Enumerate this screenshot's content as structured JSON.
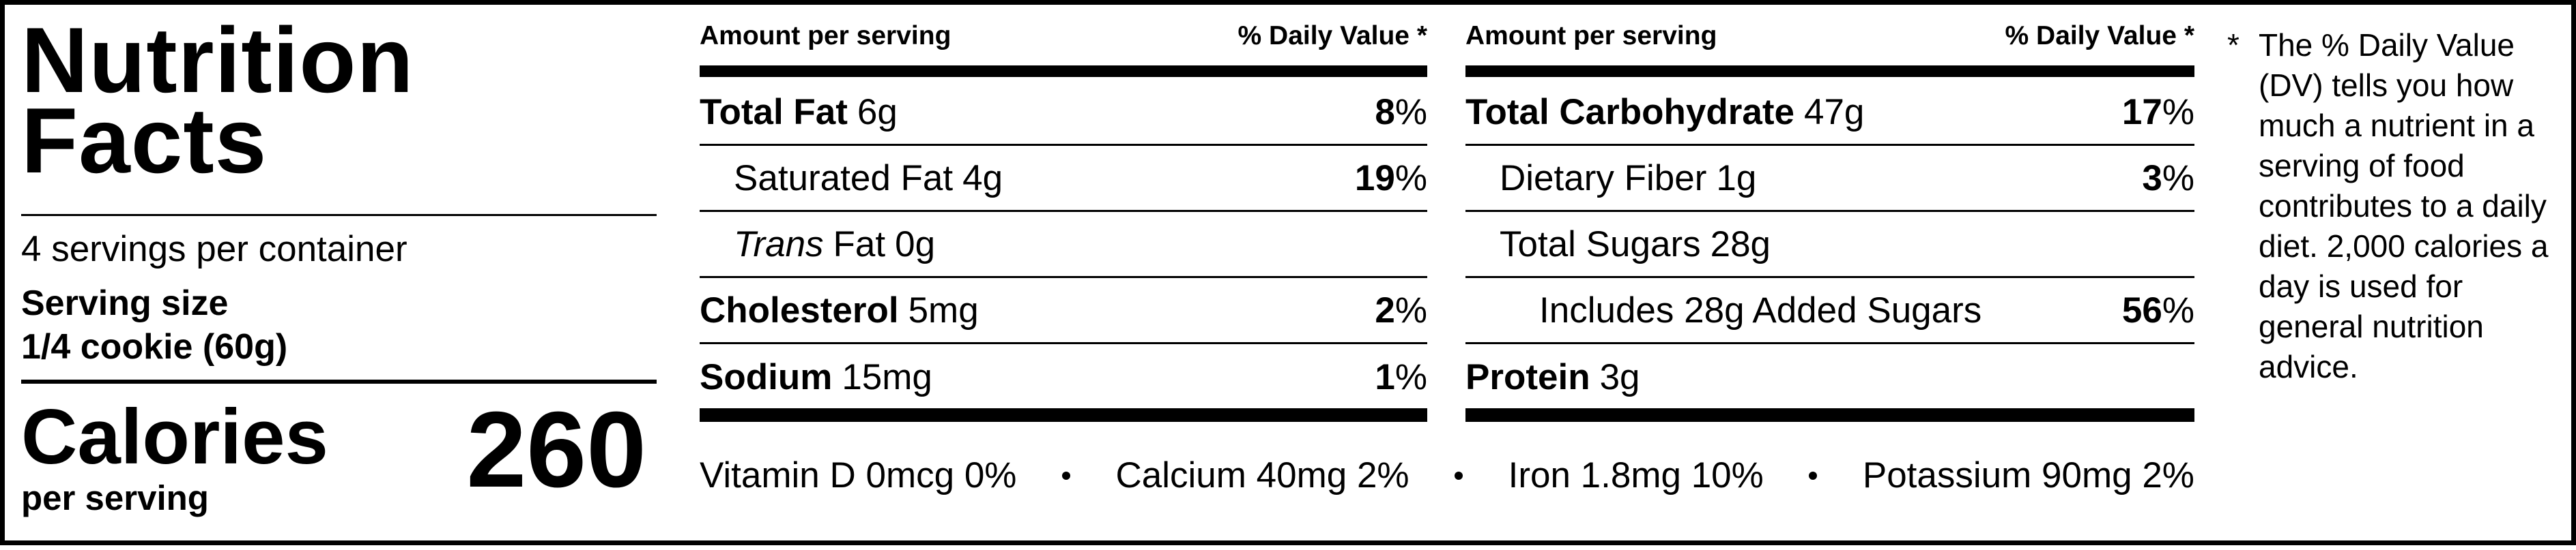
{
  "title": "Nutrition Facts",
  "servings": "4 servings per container",
  "serving_size": {
    "label": "Serving size",
    "value": "1/4 cookie (60g)"
  },
  "calories": {
    "label": "Calories",
    "sublabel": "per serving",
    "value": 260
  },
  "columns": [
    {
      "header": {
        "amount": "Amount per serving",
        "dv": "% Daily Value *"
      },
      "rows": [
        {
          "name": "Total Fat",
          "amount": "6g",
          "dv": "8",
          "dv_unit": "%"
        },
        {
          "name": "Saturated Fat",
          "amount": "4g",
          "dv": "19",
          "dv_unit": "%"
        },
        {
          "name_italic": "Trans",
          "name": "Fat",
          "amount": "0g"
        },
        {
          "name": "Cholesterol",
          "amount": "5mg",
          "dv": "2",
          "dv_unit": "%"
        },
        {
          "name": "Sodium",
          "amount": "15mg",
          "dv": "1",
          "dv_unit": "%"
        }
      ]
    },
    {
      "header": {
        "amount": "Amount per serving",
        "dv": "% Daily Value *"
      },
      "rows": [
        {
          "name": "Total Carbohydrate",
          "amount": "47g",
          "dv": "17",
          "dv_unit": "%"
        },
        {
          "name": "Dietary Fiber",
          "amount": "1g",
          "dv": "3",
          "dv_unit": "%"
        },
        {
          "name": "Total Sugars",
          "amount": "28g"
        },
        {
          "name": "Includes 28g Added Sugars",
          "dv": "56",
          "dv_unit": "%"
        },
        {
          "name": "Protein",
          "amount": "3g"
        }
      ]
    }
  ],
  "vitamins": [
    "Vitamin D 0mcg 0%",
    "Calcium 40mg 2%",
    "Iron 1.8mg 10%",
    "Potassium 90mg 2%"
  ],
  "footnote": {
    "marker": "*",
    "text": "The % Daily Value (DV) tells you how much a nutrient in a serving of food contributes to a daily diet. 2,000 calories a day is used for general nutrition advice."
  }
}
